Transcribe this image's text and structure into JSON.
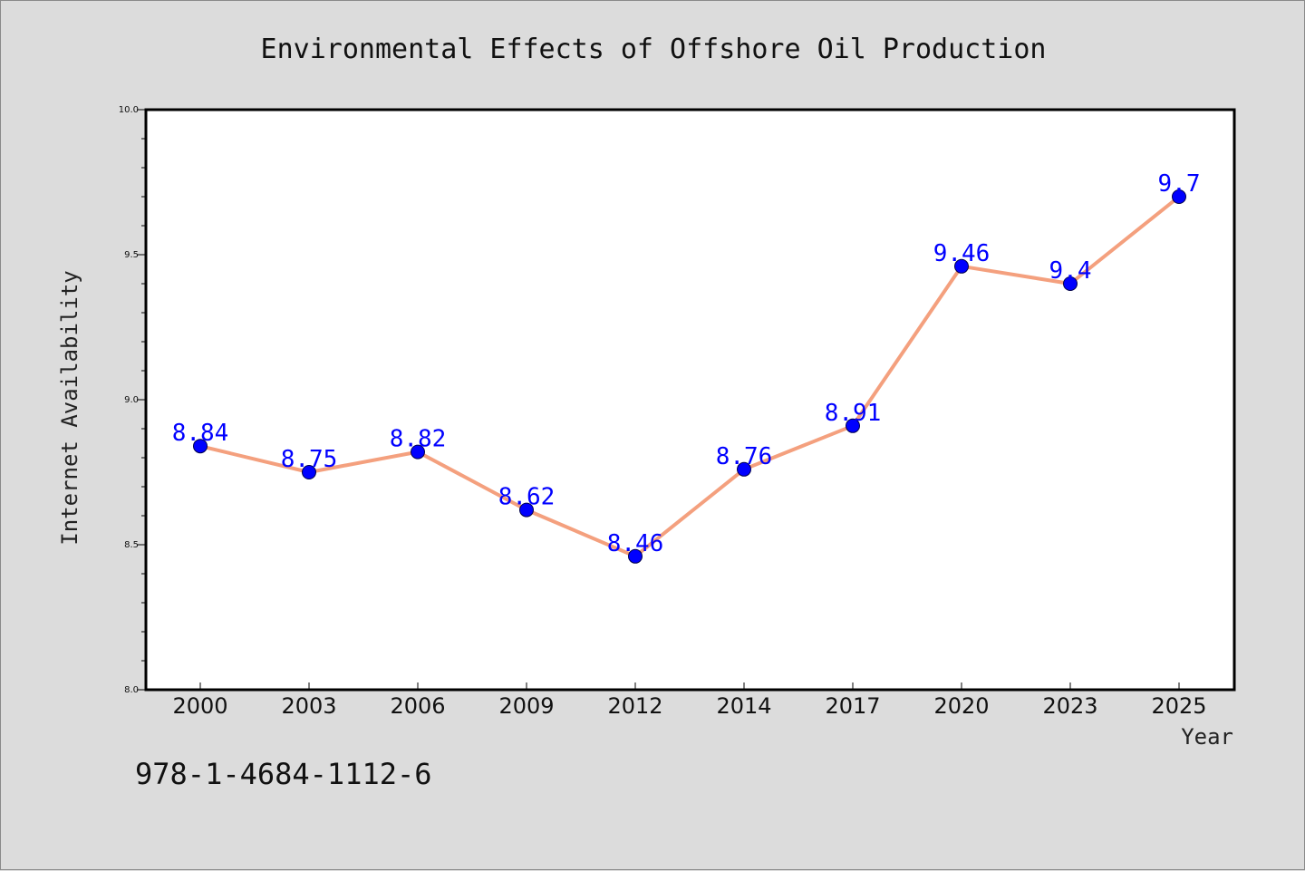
{
  "chart_data": {
    "type": "line",
    "title": "Environmental Effects of Offshore Oil Production",
    "xlabel": "Year",
    "ylabel": "Internet Availability",
    "categories": [
      "2000",
      "2003",
      "2006",
      "2009",
      "2012",
      "2014",
      "2017",
      "2020",
      "2023",
      "2025"
    ],
    "series": [
      {
        "values": [
          8.84,
          8.75,
          8.82,
          8.62,
          8.46,
          8.76,
          8.91,
          9.46,
          9.4,
          9.7
        ]
      }
    ],
    "data_labels": [
      "8.84",
      "8.75",
      "8.82",
      "8.62",
      "8.46",
      "8.76",
      "8.91",
      "9.46",
      "9.4",
      "9.7"
    ],
    "ylim": [
      8.0,
      10.0
    ],
    "yticks": [
      8.0,
      8.5,
      9.0,
      9.5,
      10.0
    ],
    "ytick_labels": [
      "8.0",
      "8.5",
      "9.0",
      "9.5",
      "10.0"
    ],
    "grid": false,
    "legend": "none",
    "colors": {
      "line": "#f4a07e",
      "marker": "#0000ff",
      "data_label": "#0000ff",
      "background": "#dcdcdc",
      "plot_area": "#ffffff"
    }
  },
  "footer": {
    "isbn": "978-1-4684-1112-6"
  }
}
